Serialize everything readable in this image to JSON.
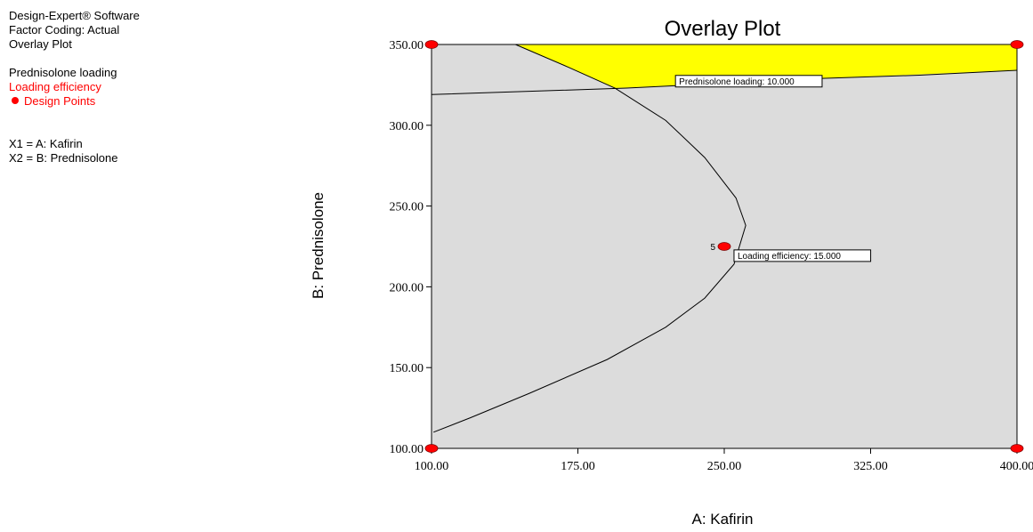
{
  "legend": {
    "software": "Design-Expert® Software",
    "factor_coding": "Factor Coding: Actual",
    "plot_type": "Overlay Plot",
    "response1": "Prednisolone loading",
    "response2": "Loading efficiency",
    "design_points": "Design Points",
    "x1": "X1 = A: Kafirin",
    "x2": "X2 = B: Prednisolone"
  },
  "colors": {
    "feasible": "#ffff00",
    "infeasible": "#dcdcdc",
    "design_point": "#ff0000",
    "legend_red": "#ff0000"
  },
  "chart_data": {
    "type": "contour_overlay",
    "title": "Overlay Plot",
    "xlabel": "A: Kafirin",
    "ylabel": "B: Prednisolone",
    "xlim": [
      100,
      400
    ],
    "ylim": [
      100,
      350
    ],
    "xticks": [
      "100.00",
      "175.00",
      "250.00",
      "325.00",
      "400.00"
    ],
    "yticks": [
      "100.00",
      "150.00",
      "200.00",
      "250.00",
      "300.00",
      "350.00"
    ],
    "contours": [
      {
        "name": "Prednisolone loading",
        "label": "Prednisolone loading: 10.000",
        "label_at": [
          225,
          327
        ],
        "points": [
          [
            100,
            319
          ],
          [
            150,
            321
          ],
          [
            200,
            323
          ],
          [
            250,
            326
          ],
          [
            300,
            329
          ],
          [
            350,
            331
          ],
          [
            400,
            334
          ]
        ]
      },
      {
        "name": "Loading efficiency",
        "label": "Loading efficiency: 15.000",
        "label_at": [
          255,
          219
        ],
        "points": [
          [
            143,
            350
          ],
          [
            170,
            336
          ],
          [
            194,
            323
          ],
          [
            220,
            303
          ],
          [
            240,
            280
          ],
          [
            256,
            255
          ],
          [
            261,
            238
          ],
          [
            255,
            214
          ],
          [
            240,
            193
          ],
          [
            220,
            175
          ],
          [
            190,
            155
          ],
          [
            150,
            134
          ],
          [
            120,
            119
          ],
          [
            101,
            110
          ]
        ]
      }
    ],
    "feasible_region": [
      [
        143,
        350
      ],
      [
        400,
        350
      ],
      [
        400,
        334
      ],
      [
        300,
        329
      ],
      [
        250,
        326
      ],
      [
        194,
        323
      ],
      [
        170,
        336
      ]
    ],
    "design_points": [
      {
        "x": 100,
        "y": 100
      },
      {
        "x": 400,
        "y": 100
      },
      {
        "x": 100,
        "y": 350
      },
      {
        "x": 400,
        "y": 350
      },
      {
        "x": 250,
        "y": 225,
        "label": "5"
      }
    ]
  }
}
